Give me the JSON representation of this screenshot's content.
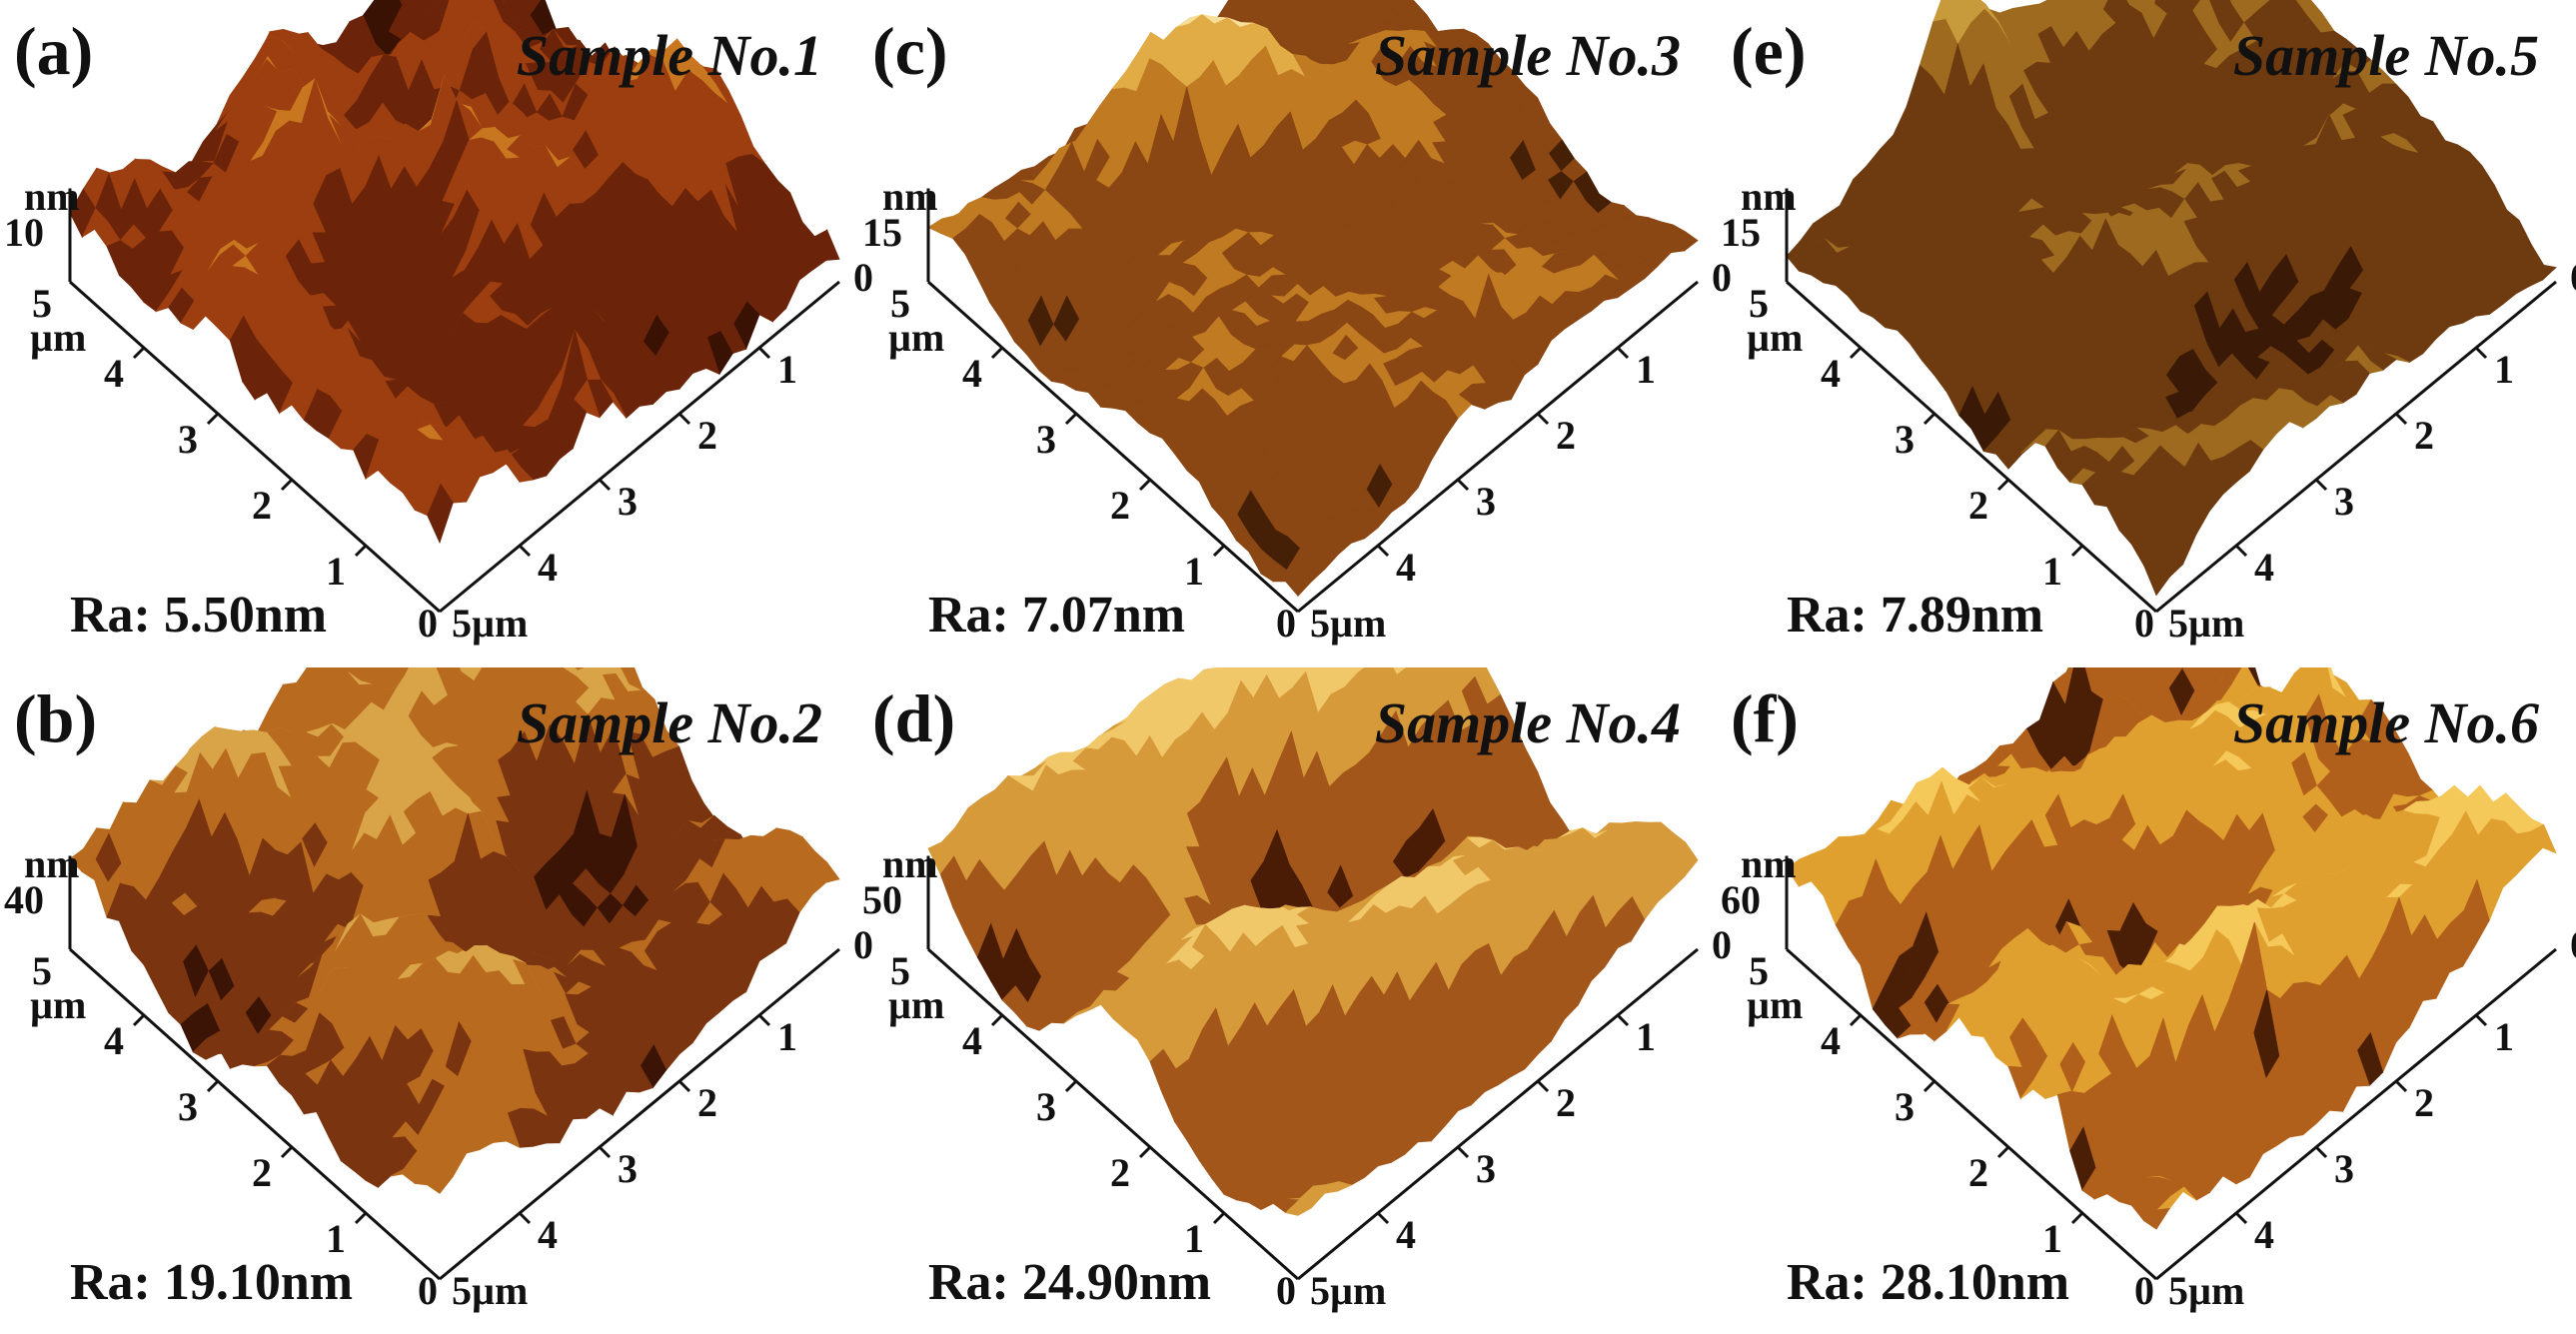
{
  "panels": [
    {
      "letter": "(a)",
      "sample": "Sample No.1",
      "ra": "Ra: 5.50nm",
      "z_unit": "nm",
      "z_tick": "10",
      "seed": 11,
      "roughness": 0.45,
      "palette": [
        "#3a1204",
        "#6b2409",
        "#9c3e10",
        "#c8761f",
        "#e2ae55"
      ]
    },
    {
      "letter": "(b)",
      "sample": "Sample No.2",
      "ra": "Ra: 19.10nm",
      "z_unit": "nm",
      "z_tick": "40",
      "seed": 23,
      "roughness": 0.8,
      "palette": [
        "#3b1405",
        "#7a3410",
        "#b86b1f",
        "#d9a448",
        "#f4e2b2"
      ]
    },
    {
      "letter": "(c)",
      "sample": "Sample No.3",
      "ra": "Ra: 7.07nm",
      "z_unit": "nm",
      "z_tick": "15",
      "seed": 37,
      "roughness": 0.6,
      "palette": [
        "#452006",
        "#8a4613",
        "#c07a22",
        "#e1ac45",
        "#f7de98"
      ]
    },
    {
      "letter": "(d)",
      "sample": "Sample No.4",
      "ra": "Ra: 24.90nm",
      "z_unit": "nm",
      "z_tick": "50",
      "seed": 41,
      "roughness": 0.9,
      "palette": [
        "#4a1c06",
        "#a2561a",
        "#d69a3a",
        "#f0c86a",
        "#fbe6b4"
      ]
    },
    {
      "letter": "(e)",
      "sample": "Sample No.5",
      "ra": "Ra: 7.89nm",
      "z_unit": "nm",
      "z_tick": "15",
      "seed": 53,
      "roughness": 0.7,
      "palette": [
        "#3a1a06",
        "#6e3a10",
        "#9e6a1f",
        "#c79a3c",
        "#e9d4a2"
      ]
    },
    {
      "letter": "(f)",
      "sample": "Sample No.6",
      "ra": "Ra: 28.10nm",
      "z_unit": "nm",
      "z_tick": "60",
      "seed": 67,
      "roughness": 1.0,
      "palette": [
        "#4b1e06",
        "#b0601a",
        "#e0a030",
        "#f5c85a",
        "#fbe5a8"
      ]
    }
  ],
  "axis": {
    "left_ticks": [
      "1",
      "2",
      "3",
      "4"
    ],
    "right_ticks": [
      "1",
      "2",
      "3",
      "4"
    ],
    "origin_label": "0",
    "left_end_value": "5",
    "left_end_unit": "µm",
    "right_end_value": "0",
    "bottom_right_label": "5µm"
  }
}
